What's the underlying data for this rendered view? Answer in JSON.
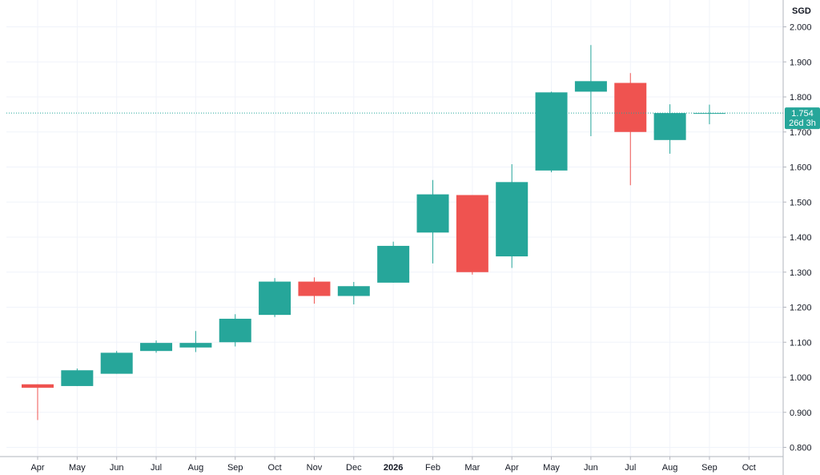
{
  "chart_data": {
    "type": "candlestick",
    "currency": "SGD",
    "ylim": [
      0.76,
      2.03
    ],
    "y_ticks": [
      "0.800",
      "0.900",
      "1.000",
      "1.100",
      "1.200",
      "1.300",
      "1.400",
      "1.500",
      "1.600",
      "1.700",
      "1.800",
      "1.900",
      "2.000"
    ],
    "x_ticks": [
      {
        "label": "Apr",
        "bold": false
      },
      {
        "label": "May",
        "bold": false
      },
      {
        "label": "Jun",
        "bold": false
      },
      {
        "label": "Jul",
        "bold": false
      },
      {
        "label": "Aug",
        "bold": false
      },
      {
        "label": "Sep",
        "bold": false
      },
      {
        "label": "Oct",
        "bold": false
      },
      {
        "label": "Nov",
        "bold": false
      },
      {
        "label": "Dec",
        "bold": false
      },
      {
        "label": "2026",
        "bold": true
      },
      {
        "label": "Feb",
        "bold": false
      },
      {
        "label": "Mar",
        "bold": false
      },
      {
        "label": "Apr",
        "bold": false
      },
      {
        "label": "May",
        "bold": false
      },
      {
        "label": "Jun",
        "bold": false
      },
      {
        "label": "Jul",
        "bold": false
      },
      {
        "label": "Aug",
        "bold": false
      },
      {
        "label": "Sep",
        "bold": false
      },
      {
        "label": "Oct",
        "bold": false
      }
    ],
    "candles": [
      {
        "open": 0.98,
        "high": 0.98,
        "low": 0.878,
        "close": 0.97
      },
      {
        "open": 0.975,
        "high": 1.025,
        "low": 0.975,
        "close": 1.02
      },
      {
        "open": 1.01,
        "high": 1.075,
        "low": 1.01,
        "close": 1.07
      },
      {
        "open": 1.075,
        "high": 1.105,
        "low": 1.07,
        "close": 1.098
      },
      {
        "open": 1.085,
        "high": 1.132,
        "low": 1.072,
        "close": 1.098
      },
      {
        "open": 1.1,
        "high": 1.18,
        "low": 1.088,
        "close": 1.167
      },
      {
        "open": 1.178,
        "high": 1.283,
        "low": 1.172,
        "close": 1.273
      },
      {
        "open": 1.273,
        "high": 1.285,
        "low": 1.21,
        "close": 1.232
      },
      {
        "open": 1.232,
        "high": 1.272,
        "low": 1.208,
        "close": 1.26
      },
      {
        "open": 1.27,
        "high": 1.387,
        "low": 1.27,
        "close": 1.375
      },
      {
        "open": 1.413,
        "high": 1.563,
        "low": 1.325,
        "close": 1.522
      },
      {
        "open": 1.52,
        "high": 1.52,
        "low": 1.293,
        "close": 1.3
      },
      {
        "open": 1.345,
        "high": 1.608,
        "low": 1.312,
        "close": 1.557
      },
      {
        "open": 1.59,
        "high": 1.815,
        "low": 1.585,
        "close": 1.813
      },
      {
        "open": 1.815,
        "high": 1.948,
        "low": 1.688,
        "close": 1.845
      },
      {
        "open": 1.84,
        "high": 1.868,
        "low": 1.548,
        "close": 1.7
      },
      {
        "open": 1.677,
        "high": 1.779,
        "low": 1.638,
        "close": 1.754
      },
      {
        "open": 1.752,
        "high": 1.778,
        "low": 1.722,
        "close": 1.754
      }
    ],
    "current_price": {
      "value": 1.754,
      "label": "1.754",
      "countdown": "26d 3h"
    },
    "grid": true,
    "colors": {
      "up": "#26a69a",
      "down": "#ef5350",
      "grid": "#f0f3fa",
      "axis": "#b2b5be",
      "text": "#131722",
      "price_line": "#26a69a"
    }
  }
}
